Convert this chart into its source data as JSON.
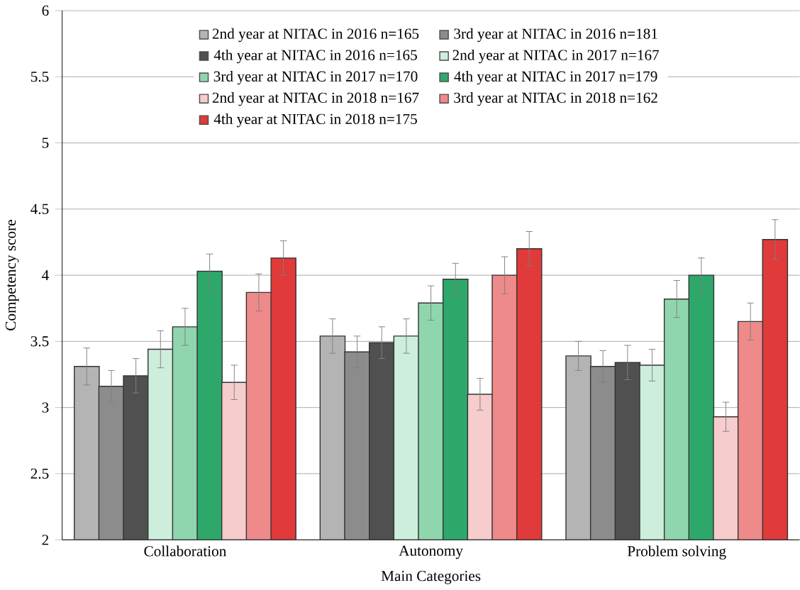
{
  "chart_data": {
    "type": "bar",
    "xlabel": "Main Categories",
    "ylabel": "Competency score",
    "categories": [
      "Collaboration",
      "Autonomy",
      "Problem solving"
    ],
    "ylim": [
      2,
      6
    ],
    "yticks": [
      2,
      2.5,
      3,
      3.5,
      4,
      4.5,
      5,
      5.5,
      6
    ],
    "grid": "y",
    "legend": "top",
    "series": [
      {
        "name": "2nd year at NITAC in 2016 n=165",
        "color": "#b4b4b4",
        "values": [
          3.31,
          3.54,
          3.39
        ],
        "errors": [
          0.14,
          0.13,
          0.11
        ]
      },
      {
        "name": "3rd year at NITAC in 2016 n=181",
        "color": "#8c8c8c",
        "values": [
          3.16,
          3.42,
          3.31
        ],
        "errors": [
          0.12,
          0.12,
          0.12
        ]
      },
      {
        "name": "4th year at NITAC in 2016 n=165",
        "color": "#505050",
        "values": [
          3.24,
          3.49,
          3.34
        ],
        "errors": [
          0.13,
          0.12,
          0.13
        ]
      },
      {
        "name": "2nd year at NITAC in 2017 n=167",
        "color": "#cdeedc",
        "values": [
          3.44,
          3.54,
          3.32
        ],
        "errors": [
          0.14,
          0.13,
          0.12
        ]
      },
      {
        "name": "3rd year at NITAC in 2017 n=170",
        "color": "#8fd6ae",
        "values": [
          3.61,
          3.79,
          3.82
        ],
        "errors": [
          0.14,
          0.13,
          0.14
        ]
      },
      {
        "name": "4th year at NITAC in 2017 n=179",
        "color": "#2ea86a",
        "values": [
          4.03,
          3.97,
          4.0
        ],
        "errors": [
          0.13,
          0.12,
          0.13
        ]
      },
      {
        "name": "2nd  year at NITAC in 2018 n=167",
        "color": "#f6cccc",
        "values": [
          3.19,
          3.1,
          2.93
        ],
        "errors": [
          0.13,
          0.12,
          0.11
        ]
      },
      {
        "name": "3rd  year at NITAC in 2018 n=162",
        "color": "#ee8a8a",
        "values": [
          3.87,
          4.0,
          3.65
        ],
        "errors": [
          0.14,
          0.14,
          0.14
        ]
      },
      {
        "name": "4th  year at NITAC in 2018 n=175",
        "color": "#e03a3a",
        "values": [
          4.13,
          4.2,
          4.27
        ],
        "errors": [
          0.13,
          0.13,
          0.15
        ]
      }
    ]
  }
}
